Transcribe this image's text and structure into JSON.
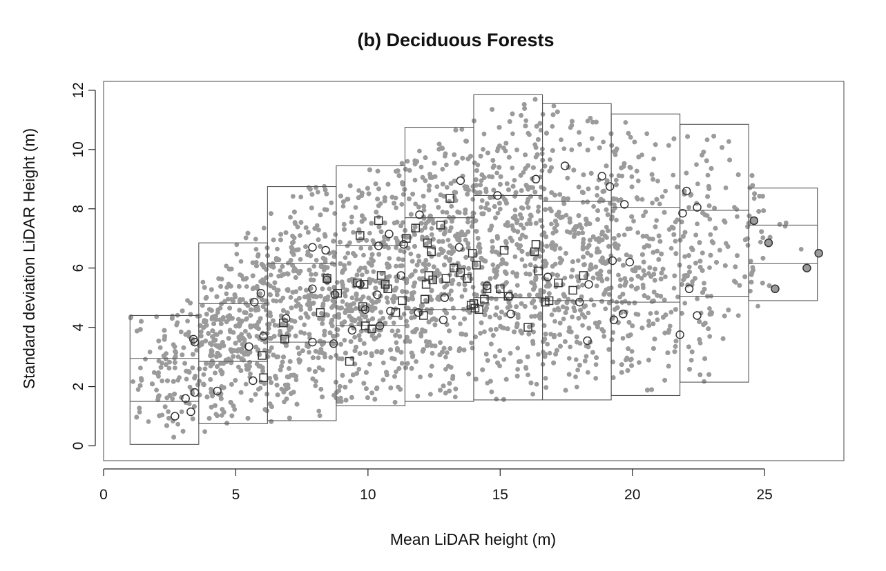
{
  "chart_data": {
    "type": "scatter",
    "title": "(b) Deciduous Forests",
    "xlabel": "Mean LiDAR height (m)",
    "ylabel": "Standard deviation LiDAR Height (m)",
    "xlim": [
      0,
      28
    ],
    "ylim": [
      -0.5,
      12.3
    ],
    "xticks": [
      0,
      5,
      10,
      15,
      20,
      25
    ],
    "yticks": [
      0,
      2,
      4,
      6,
      8,
      10,
      12
    ],
    "grid": false,
    "colors": {
      "cloud": "#9b9b9b",
      "marker": "#333333",
      "filled_marker": "#9b9b9b",
      "box": "#555555"
    },
    "bins": [
      {
        "x0": 1.0,
        "x1": 3.6,
        "ymin": 0.05,
        "q1": 1.5,
        "q3": 2.95,
        "ymax": 4.4
      },
      {
        "x0": 3.6,
        "x1": 6.2,
        "ymin": 0.75,
        "q1": 2.85,
        "q3": 4.8,
        "ymax": 6.85
      },
      {
        "x0": 6.2,
        "x1": 8.8,
        "ymin": 0.85,
        "q1": 3.5,
        "q3": 6.15,
        "ymax": 8.75
      },
      {
        "x0": 8.8,
        "x1": 11.4,
        "ymin": 1.35,
        "q1": 4.05,
        "q3": 6.75,
        "ymax": 9.45
      },
      {
        "x0": 11.4,
        "x1": 14.0,
        "ymin": 1.5,
        "q1": 4.6,
        "q3": 7.7,
        "ymax": 10.75
      },
      {
        "x0": 14.0,
        "x1": 16.6,
        "ymin": 1.55,
        "q1": 5.0,
        "q3": 8.45,
        "ymax": 11.85
      },
      {
        "x0": 16.6,
        "x1": 19.2,
        "ymin": 1.55,
        "q1": 4.9,
        "q3": 8.25,
        "ymax": 11.55
      },
      {
        "x0": 19.2,
        "x1": 21.8,
        "ymin": 1.7,
        "q1": 4.85,
        "q3": 8.05,
        "ymax": 11.2
      },
      {
        "x0": 21.8,
        "x1": 24.4,
        "ymin": 2.15,
        "q1": 5.05,
        "q3": 7.95,
        "ymax": 10.85
      },
      {
        "x0": 24.4,
        "x1": 27.0,
        "ymin": 4.9,
        "q1": 6.15,
        "q3": 7.45,
        "ymax": 8.7
      }
    ],
    "series": [
      {
        "marker": "circle",
        "points": [
          [
            2.7,
            1.0
          ],
          [
            3.3,
            1.15
          ],
          [
            3.1,
            1.6
          ],
          [
            3.45,
            1.8
          ],
          [
            3.4,
            3.6
          ],
          [
            3.45,
            3.5
          ],
          [
            4.3,
            1.85
          ],
          [
            5.5,
            3.35
          ],
          [
            5.7,
            4.85
          ],
          [
            5.65,
            2.2
          ],
          [
            5.95,
            5.15
          ],
          [
            6.05,
            3.7
          ],
          [
            6.9,
            4.3
          ],
          [
            7.9,
            3.5
          ],
          [
            7.9,
            5.3
          ],
          [
            7.9,
            6.7
          ],
          [
            8.4,
            6.6
          ],
          [
            8.45,
            5.6
          ],
          [
            8.7,
            3.45
          ],
          [
            8.75,
            5.1
          ],
          [
            9.4,
            3.9
          ],
          [
            9.7,
            5.45
          ],
          [
            9.9,
            4.6
          ],
          [
            10.35,
            5.1
          ],
          [
            10.4,
            6.75
          ],
          [
            10.45,
            4.05
          ],
          [
            10.8,
            7.15
          ],
          [
            10.85,
            4.55
          ],
          [
            11.25,
            5.75
          ],
          [
            11.35,
            6.8
          ],
          [
            11.9,
            4.5
          ],
          [
            11.95,
            7.8
          ],
          [
            12.85,
            4.25
          ],
          [
            12.9,
            5.0
          ],
          [
            13.45,
            6.7
          ],
          [
            13.5,
            8.95
          ],
          [
            14.5,
            5.4
          ],
          [
            14.9,
            8.45
          ],
          [
            15.35,
            5.05
          ],
          [
            15.4,
            4.45
          ],
          [
            16.35,
            9.0
          ],
          [
            16.8,
            5.7
          ],
          [
            17.45,
            9.45
          ],
          [
            18.0,
            4.85
          ],
          [
            18.3,
            3.55
          ],
          [
            18.35,
            5.45
          ],
          [
            18.85,
            9.1
          ],
          [
            19.15,
            8.75
          ],
          [
            19.25,
            6.25
          ],
          [
            19.3,
            4.25
          ],
          [
            19.65,
            4.45
          ],
          [
            19.7,
            8.15
          ],
          [
            19.9,
            6.2
          ],
          [
            21.8,
            3.75
          ],
          [
            21.9,
            7.85
          ],
          [
            22.05,
            8.6
          ],
          [
            22.15,
            5.3
          ],
          [
            22.45,
            4.4
          ],
          [
            22.45,
            8.05
          ]
        ]
      },
      {
        "marker": "square",
        "points": [
          [
            6.0,
            3.05
          ],
          [
            6.05,
            2.3
          ],
          [
            6.8,
            4.15
          ],
          [
            6.85,
            3.6
          ],
          [
            8.2,
            4.5
          ],
          [
            8.45,
            5.65
          ],
          [
            8.85,
            5.15
          ],
          [
            9.3,
            2.85
          ],
          [
            9.6,
            5.5
          ],
          [
            9.7,
            7.1
          ],
          [
            9.8,
            4.7
          ],
          [
            9.85,
            5.45
          ],
          [
            9.9,
            4.05
          ],
          [
            10.15,
            3.95
          ],
          [
            10.4,
            7.6
          ],
          [
            10.5,
            5.75
          ],
          [
            10.65,
            5.45
          ],
          [
            10.75,
            5.3
          ],
          [
            11.05,
            4.5
          ],
          [
            11.3,
            4.9
          ],
          [
            11.45,
            7.0
          ],
          [
            11.8,
            7.35
          ],
          [
            12.1,
            4.4
          ],
          [
            12.15,
            4.95
          ],
          [
            12.2,
            5.45
          ],
          [
            12.25,
            6.85
          ],
          [
            12.3,
            5.75
          ],
          [
            12.4,
            6.55
          ],
          [
            12.45,
            5.6
          ],
          [
            12.75,
            7.45
          ],
          [
            12.95,
            5.65
          ],
          [
            13.1,
            8.35
          ],
          [
            13.25,
            6.0
          ],
          [
            13.5,
            5.85
          ],
          [
            13.75,
            5.65
          ],
          [
            13.9,
            4.75
          ],
          [
            13.95,
            6.5
          ],
          [
            14.0,
            4.8
          ],
          [
            14.05,
            4.65
          ],
          [
            14.1,
            6.1
          ],
          [
            14.2,
            4.6
          ],
          [
            14.4,
            4.95
          ],
          [
            14.5,
            5.3
          ],
          [
            15.0,
            5.3
          ],
          [
            15.15,
            6.6
          ],
          [
            15.3,
            5.05
          ],
          [
            16.05,
            4.0
          ],
          [
            16.3,
            6.55
          ],
          [
            16.35,
            6.8
          ],
          [
            16.45,
            5.9
          ],
          [
            16.7,
            4.85
          ],
          [
            16.85,
            4.9
          ],
          [
            17.2,
            5.5
          ],
          [
            17.75,
            5.25
          ],
          [
            18.15,
            5.75
          ]
        ]
      },
      {
        "marker": "filled-circle",
        "points": [
          [
            24.6,
            7.6
          ],
          [
            25.15,
            6.85
          ],
          [
            25.4,
            5.3
          ],
          [
            26.6,
            6.0
          ],
          [
            27.05,
            6.5
          ]
        ]
      }
    ]
  }
}
